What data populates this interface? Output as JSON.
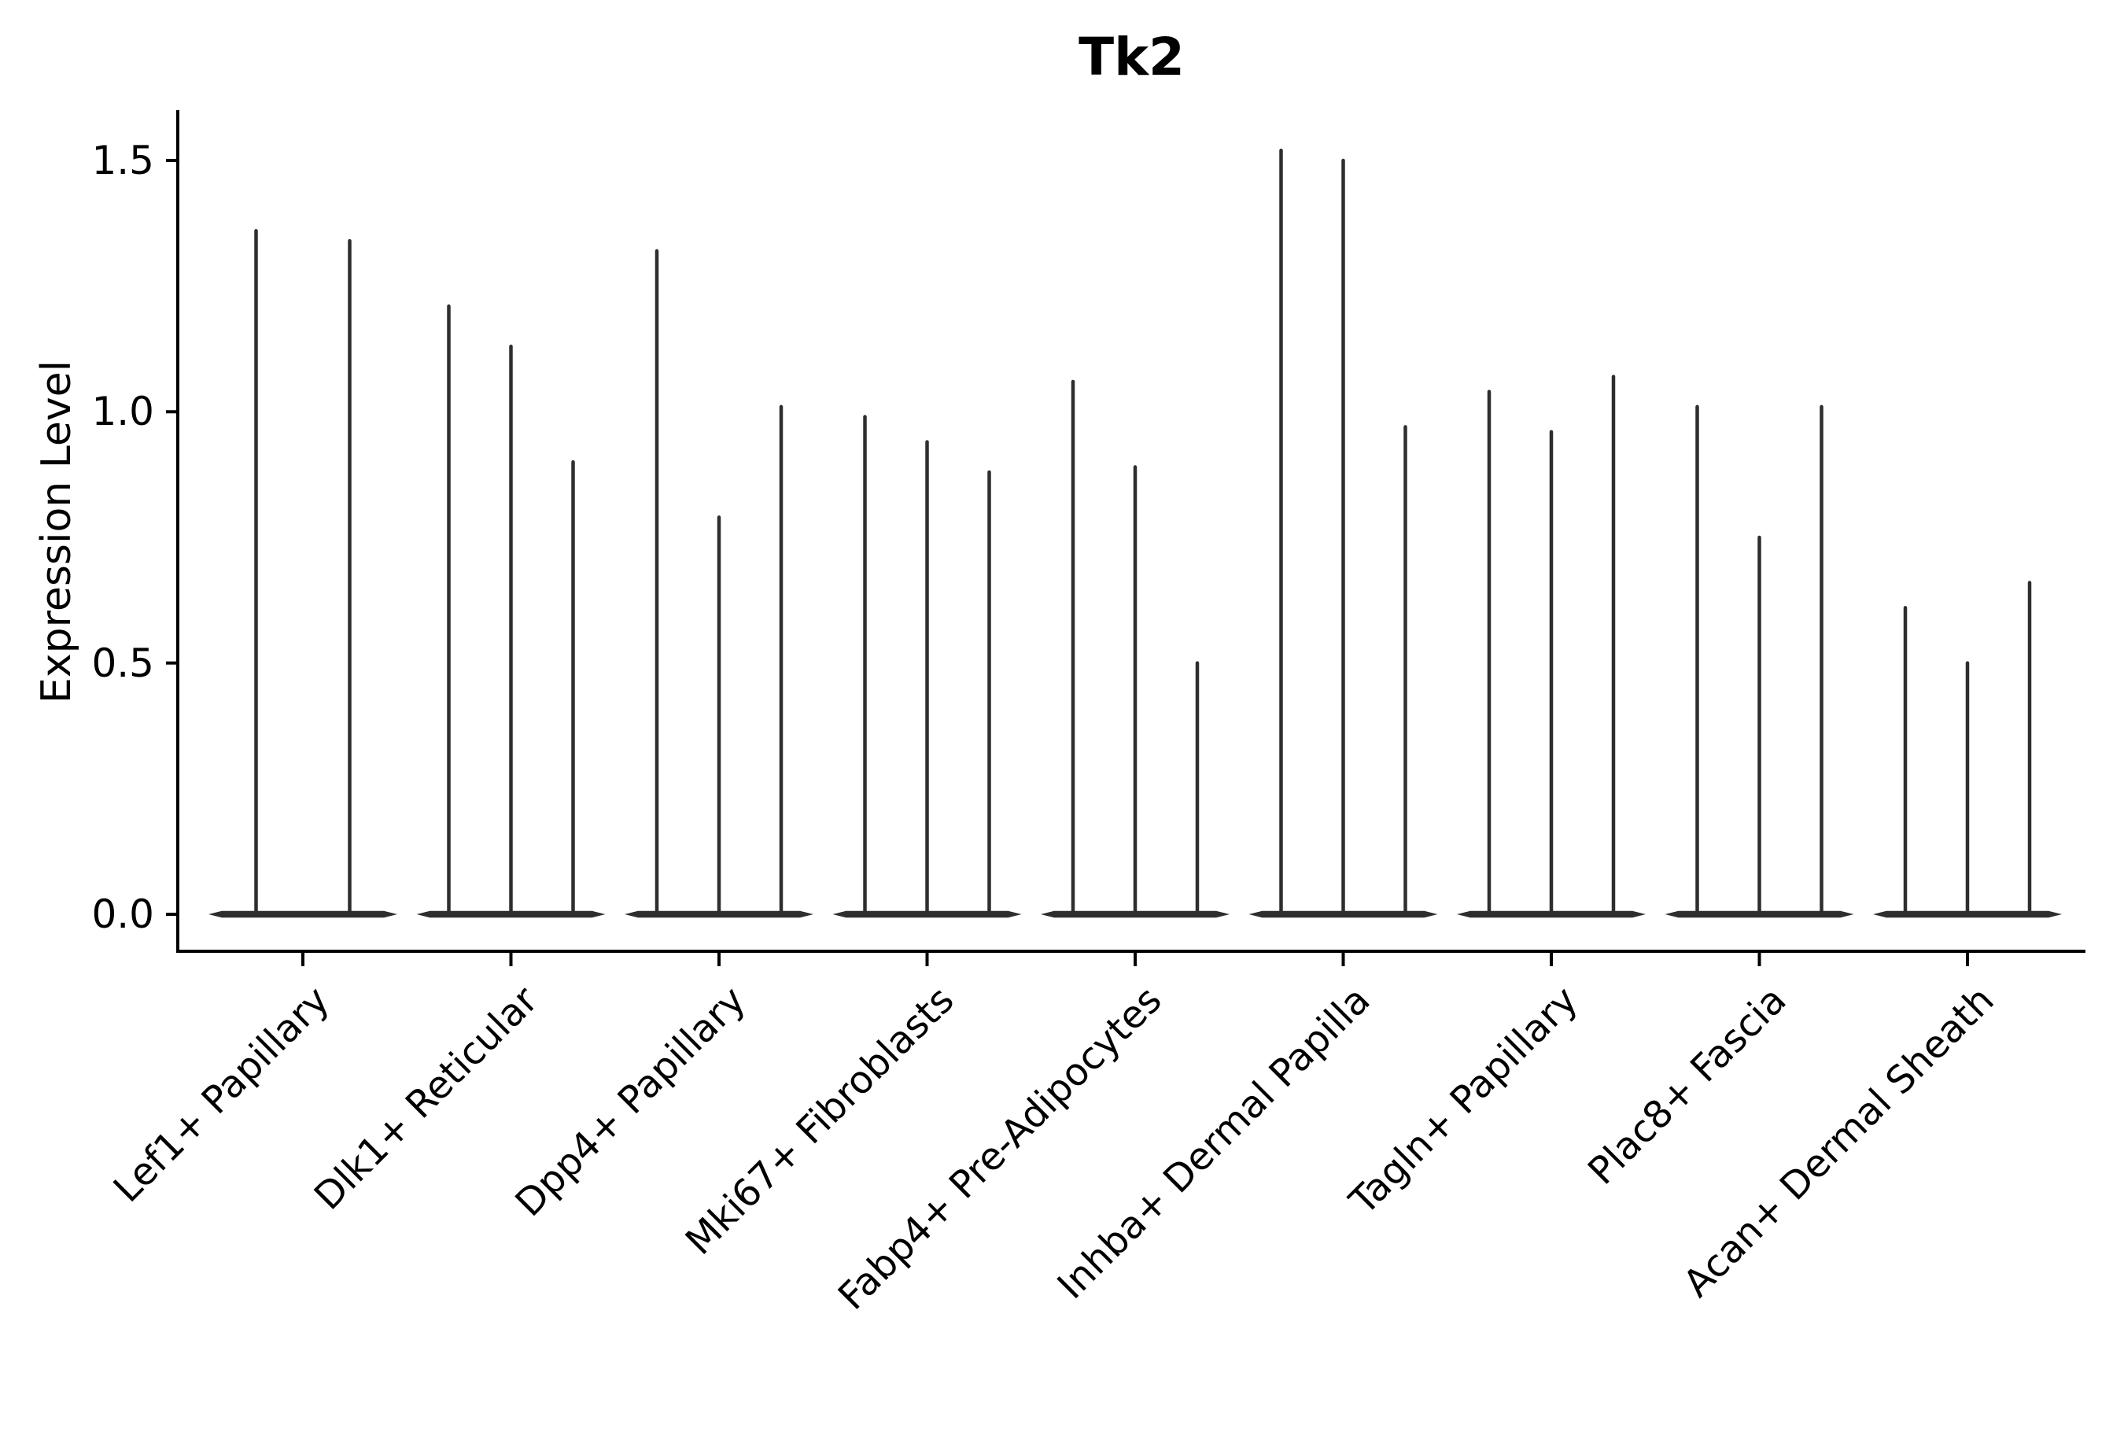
{
  "title": "Tk2",
  "y_axis": {
    "label": "Expression Level",
    "tick_labels": [
      "0.0",
      "0.5",
      "1.0",
      "1.5"
    ],
    "tick_values": [
      0,
      0.5,
      1.0,
      1.5
    ]
  },
  "x_axis": {
    "categories": [
      "Lef1+ Papillary",
      "Dlk1+ Reticular",
      "Dpp4+ Papillary",
      "Mki67+ Fibroblasts",
      "Fabp4+ Pre-Adipocytes",
      "Inhba+ Dermal Papilla",
      "Tagln+ Papillary",
      "Plac8+ Fascia",
      "Acan+ Dermal Sheath"
    ]
  },
  "chart_data": {
    "type": "violin",
    "title": "Tk2",
    "xlabel": "",
    "ylabel": "Expression Level",
    "ylim": [
      -0.07,
      1.6
    ],
    "grid": false,
    "legend": "none",
    "categories": [
      "Lef1+ Papillary",
      "Dlk1+ Reticular",
      "Dpp4+ Papillary",
      "Mki67+ Fibroblasts",
      "Fabp4+ Pre-Adipocytes",
      "Inhba+ Dermal Papilla",
      "Tagln+ Papillary",
      "Plac8+ Fascia",
      "Acan+ Dermal Sheath"
    ],
    "groups": [
      {
        "category": "Lef1+ Papillary",
        "violin_maxima": [
          1.36,
          1.34
        ]
      },
      {
        "category": "Dlk1+ Reticular",
        "violin_maxima": [
          1.21,
          1.13,
          0.9
        ]
      },
      {
        "category": "Dpp4+ Papillary",
        "violin_maxima": [
          1.32,
          0.79,
          1.01
        ]
      },
      {
        "category": "Mki67+ Fibroblasts",
        "violin_maxima": [
          0.99,
          0.94,
          0.88
        ]
      },
      {
        "category": "Fabp4+ Pre-Adipocytes",
        "violin_maxima": [
          1.06,
          0.89,
          0.5
        ]
      },
      {
        "category": "Inhba+ Dermal Papilla",
        "violin_maxima": [
          1.52,
          1.5,
          0.97
        ]
      },
      {
        "category": "Tagln+ Papillary",
        "violin_maxima": [
          1.04,
          0.96,
          1.07
        ]
      },
      {
        "category": "Plac8+ Fascia",
        "violin_maxima": [
          1.01,
          0.75,
          1.01
        ]
      },
      {
        "category": "Acan+ Dermal Sheath",
        "violin_maxima": [
          0.61,
          0.5,
          0.66
        ]
      }
    ],
    "note": "Needle-thin violins: nearly all density at 0 (flat base lens per group) with hairline spikes rising to each violin's maximum expression value"
  },
  "colors": {
    "violin": "#2e2e2e",
    "axis": "#000000",
    "background": "#ffffff"
  }
}
